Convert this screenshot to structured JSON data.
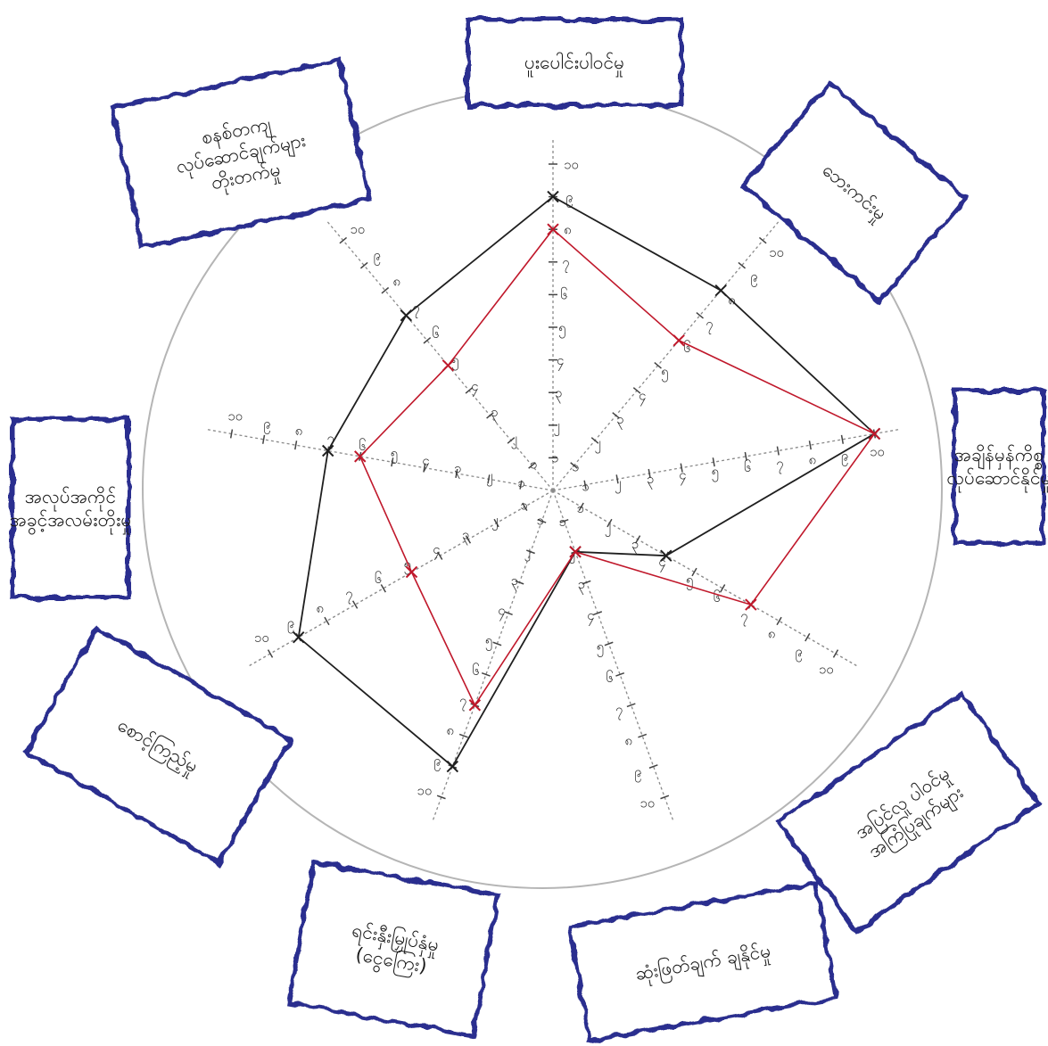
{
  "chart_data": {
    "type": "radar",
    "title": "",
    "rlim": [
      0,
      10
    ],
    "tick_labels": [
      "၁",
      "၂",
      "၃",
      "၄",
      "၅",
      "၆",
      "၇",
      "၈",
      "၉",
      "၁၀"
    ],
    "grid": true,
    "categories": [
      {
        "label": "ပူးပေါင်းပါဝင်မှု"
      },
      {
        "label": "စနစ်တကျ လုပ်ဆောင်ချက်များ တိုးတက်မှု"
      },
      {
        "label": "ဘေးကင်းမှု"
      },
      {
        "label": "အချိန်မှန်ကိစ္စ လုပ်ဆောင်နိုင်မှု"
      },
      {
        "label": "အပြင်လူ ပါဝင်မှု အကြံပြုချက်များ"
      },
      {
        "label": "ဆုံးဖြတ်ချက် ချနိုင်မှု"
      },
      {
        "label": "ရင်းနှီးမြှုပ်နှံမှု (ငွေကြေး)"
      },
      {
        "label": "စောင့်ကြည့်မှု"
      },
      {
        "label": "အလုပ်အကိုင် အခွင့်အလမ်းတိုးမှု"
      }
    ],
    "series": [
      {
        "color": "#1f1f1f",
        "values": [
          9,
          8,
          10,
          4,
          2,
          9,
          9,
          7,
          7
        ]
      },
      {
        "color": "#c0182b",
        "values": [
          8,
          6,
          10,
          7,
          2,
          7,
          5,
          6,
          5
        ]
      }
    ]
  }
}
